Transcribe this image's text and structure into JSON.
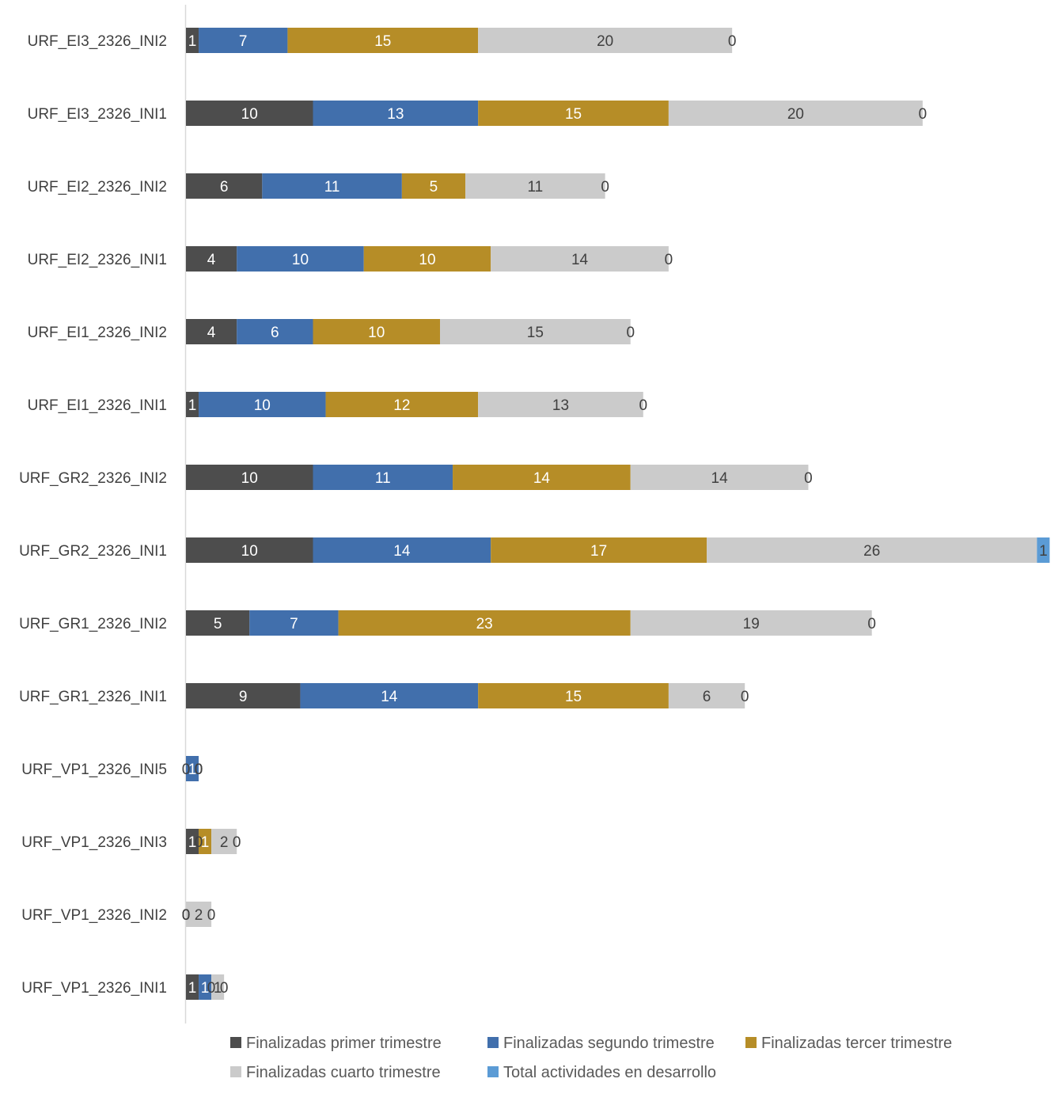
{
  "chart_data": {
    "type": "bar",
    "orientation": "horizontal",
    "stacked": true,
    "title": "",
    "xlabel": "",
    "ylabel": "",
    "xlim": [
      0,
      68
    ],
    "grid": false,
    "legend_position": "bottom",
    "categories": [
      "URF_EI3_2326_INI2",
      "URF_EI3_2326_INI1",
      "URF_EI2_2326_INI2",
      "URF_EI2_2326_INI1",
      "URF_EI1_2326_INI2",
      "URF_EI1_2326_INI1",
      "URF_GR2_2326_INI2",
      "URF_GR2_2326_INI1",
      "URF_GR1_2326_INI2",
      "URF_GR1_2326_INI1",
      "URF_VP1_2326_INI5",
      "URF_VP1_2326_INI3",
      "URF_VP1_2326_INI2",
      "URF_VP1_2326_INI1"
    ],
    "series": [
      {
        "name": "Finalizadas primer trimestre",
        "color": "#4d4d4d",
        "label_color": "#ffffff",
        "values": [
          1,
          10,
          6,
          4,
          4,
          1,
          10,
          10,
          5,
          9,
          0,
          1,
          0,
          1
        ]
      },
      {
        "name": "Finalizadas segundo trimestre",
        "color": "#416fac",
        "label_color": "#ffffff",
        "values": [
          7,
          13,
          11,
          10,
          6,
          10,
          11,
          14,
          7,
          14,
          1,
          0,
          0,
          1
        ]
      },
      {
        "name": "Finalizadas tercer trimestre",
        "color": "#b68d27",
        "label_color": "#ffffff",
        "values": [
          15,
          15,
          5,
          10,
          10,
          12,
          14,
          17,
          23,
          15,
          0,
          1,
          0,
          0
        ]
      },
      {
        "name": "Finalizadas cuarto trimestre",
        "color": "#cbcbcb",
        "label_color": "#404040",
        "values": [
          20,
          20,
          11,
          14,
          15,
          13,
          14,
          26,
          19,
          6,
          0,
          2,
          2,
          1
        ]
      },
      {
        "name": "Total actividades en desarrollo",
        "color": "#5b9bd5",
        "label_color": "#404040",
        "values": [
          0,
          0,
          0,
          0,
          0,
          0,
          0,
          1,
          0,
          0,
          0,
          0,
          0,
          0
        ]
      }
    ]
  }
}
